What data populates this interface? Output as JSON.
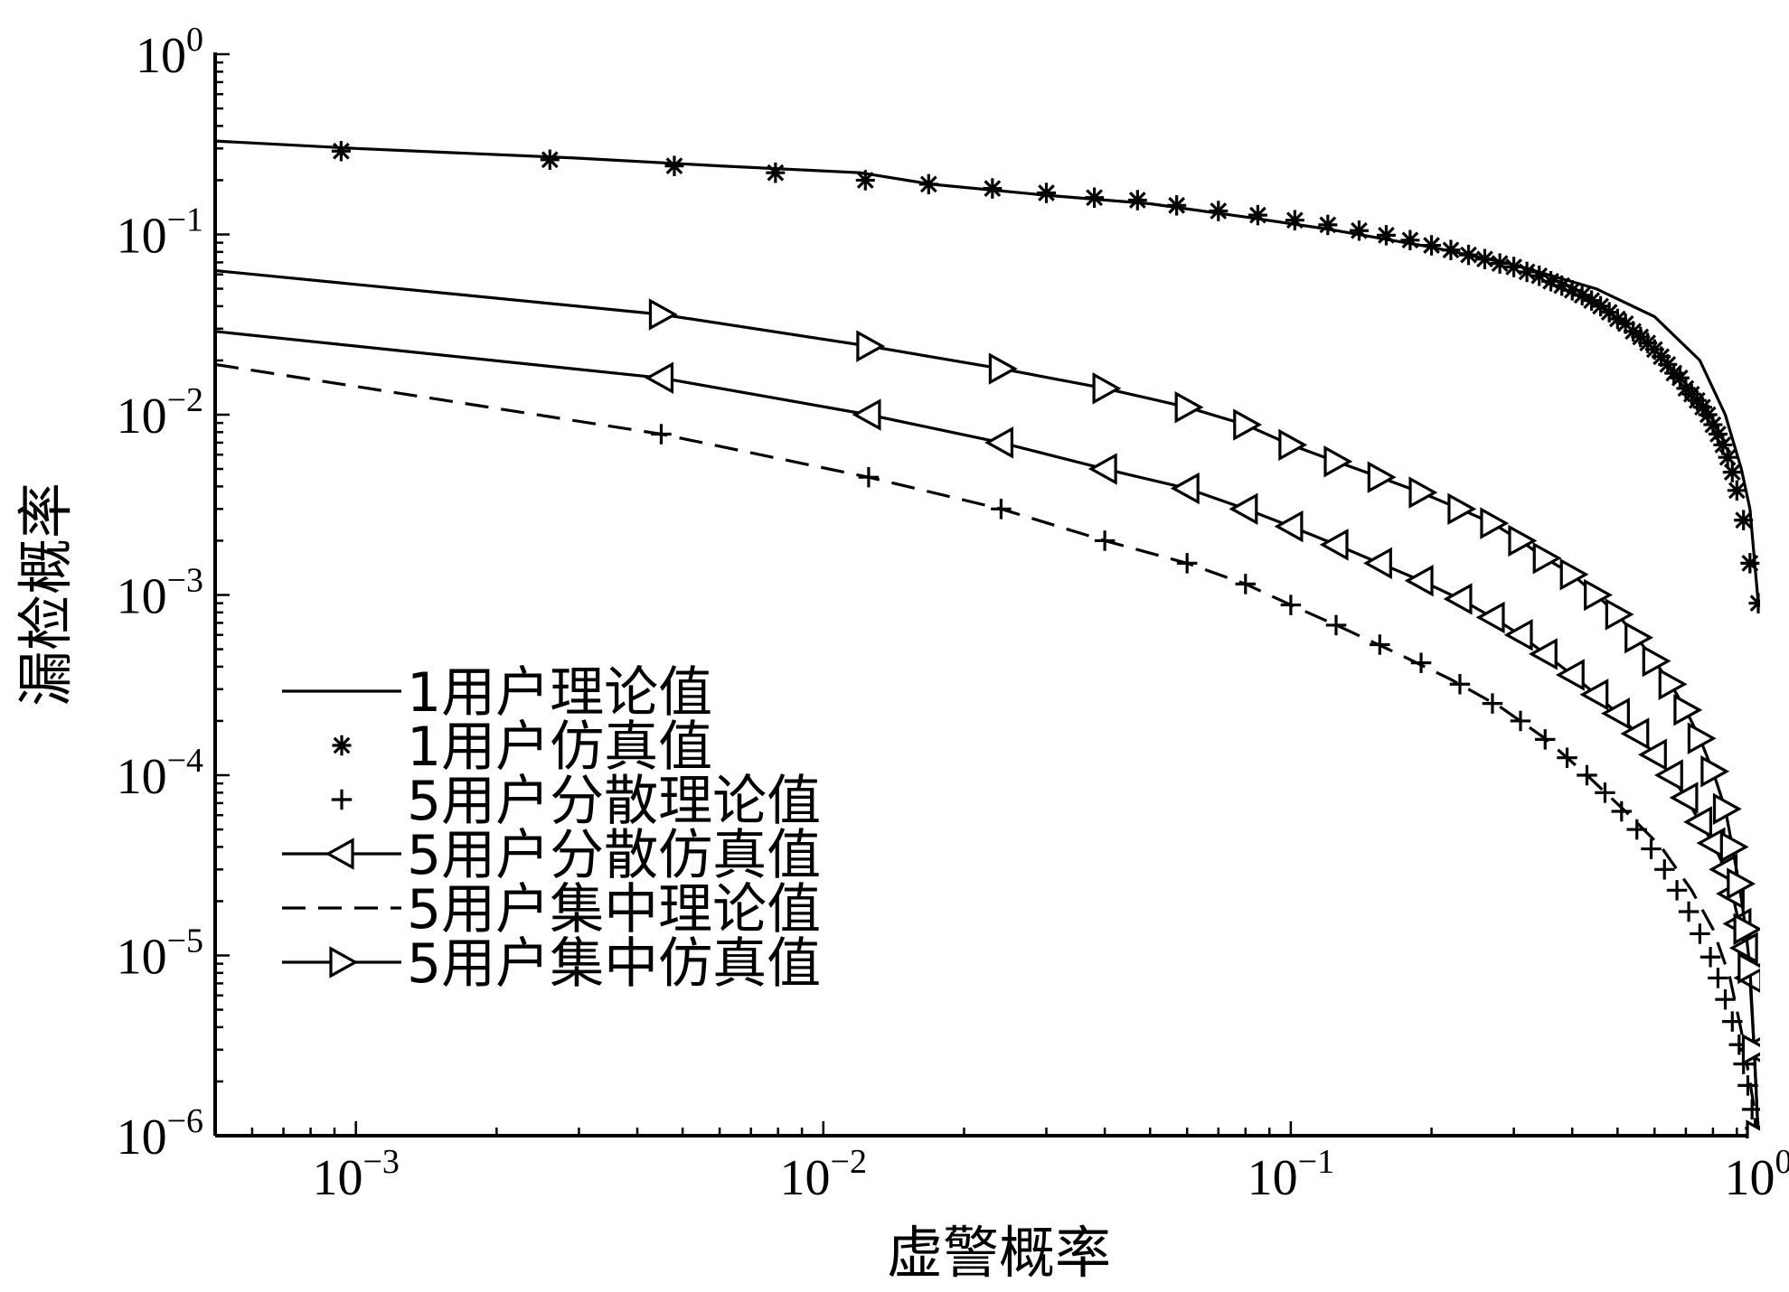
{
  "chart_data": {
    "type": "line",
    "xlabel": "虚警概率",
    "ylabel": "漏检概率",
    "xscale": "log",
    "yscale": "log",
    "xlim": [
      0.0005,
      1.0
    ],
    "ylim": [
      1e-06,
      1.0
    ],
    "grid": false,
    "legend_position": "bottom-left",
    "x_tick_labels": [
      {
        "value": 0.001,
        "base": "10",
        "exp": "−3"
      },
      {
        "value": 0.01,
        "base": "10",
        "exp": "−2"
      },
      {
        "value": 0.1,
        "base": "10",
        "exp": "−1"
      },
      {
        "value": 1,
        "base": "10",
        "exp": "0"
      }
    ],
    "y_tick_labels": [
      {
        "value": 1,
        "base": "10",
        "exp": "0"
      },
      {
        "value": 0.1,
        "base": "10",
        "exp": "−1"
      },
      {
        "value": 0.01,
        "base": "10",
        "exp": "−2"
      },
      {
        "value": 0.001,
        "base": "10",
        "exp": "−3"
      },
      {
        "value": 0.0001,
        "base": "10",
        "exp": "−4"
      },
      {
        "value": 1e-05,
        "base": "10",
        "exp": "−5"
      },
      {
        "value": 1e-06,
        "base": "10",
        "exp": "−6"
      }
    ],
    "series": [
      {
        "name": "1用户理论值",
        "line": "solid",
        "marker": "none",
        "x": [
          0.0005,
          0.001,
          0.003,
          0.006,
          0.012,
          0.017,
          0.03,
          0.05,
          0.08,
          0.12,
          0.2,
          0.3,
          0.45,
          0.6,
          0.75,
          0.85,
          0.92,
          0.96,
          1.0
        ],
        "y": [
          0.33,
          0.3,
          0.265,
          0.24,
          0.22,
          0.19,
          0.165,
          0.148,
          0.125,
          0.107,
          0.085,
          0.068,
          0.05,
          0.035,
          0.02,
          0.01,
          0.005,
          0.003,
          0.0009
        ]
      },
      {
        "name": "1用户仿真值",
        "line": "none",
        "marker": "asterisk",
        "x": [
          0.00093,
          0.0026,
          0.0048,
          0.0079,
          0.0123,
          0.0168,
          0.023,
          0.03,
          0.038,
          0.047,
          0.057,
          0.07,
          0.085,
          0.102,
          0.12,
          0.14,
          0.16,
          0.18,
          0.2,
          0.22,
          0.24,
          0.26,
          0.28,
          0.3,
          0.32,
          0.34,
          0.36,
          0.38,
          0.4,
          0.42,
          0.44,
          0.46,
          0.48,
          0.5,
          0.52,
          0.54,
          0.56,
          0.58,
          0.6,
          0.62,
          0.64,
          0.66,
          0.68,
          0.7,
          0.72,
          0.74,
          0.76,
          0.78,
          0.8,
          0.82,
          0.84,
          0.86,
          0.88,
          0.9,
          0.93,
          0.96,
          1.0
        ],
        "y": [
          0.29,
          0.26,
          0.24,
          0.22,
          0.2,
          0.19,
          0.18,
          0.17,
          0.16,
          0.155,
          0.145,
          0.135,
          0.128,
          0.12,
          0.113,
          0.105,
          0.099,
          0.093,
          0.087,
          0.082,
          0.077,
          0.073,
          0.069,
          0.066,
          0.062,
          0.059,
          0.055,
          0.052,
          0.049,
          0.046,
          0.043,
          0.04,
          0.037,
          0.034,
          0.032,
          0.029,
          0.027,
          0.025,
          0.023,
          0.021,
          0.019,
          0.017,
          0.016,
          0.014,
          0.013,
          0.012,
          0.011,
          0.01,
          0.0088,
          0.0078,
          0.0068,
          0.0058,
          0.0048,
          0.0038,
          0.0026,
          0.0015,
          0.0009
        ]
      },
      {
        "name": "5用户分散理论值",
        "line": "none",
        "marker": "plus",
        "x": [
          0.0045,
          0.0125,
          0.024,
          0.04,
          0.06,
          0.08,
          0.1,
          0.125,
          0.155,
          0.19,
          0.23,
          0.27,
          0.31,
          0.35,
          0.39,
          0.43,
          0.47,
          0.51,
          0.55,
          0.59,
          0.63,
          0.67,
          0.71,
          0.75,
          0.79,
          0.82,
          0.85,
          0.88,
          0.91,
          0.93,
          0.95,
          0.97,
          0.985,
          1.0
        ],
        "y": [
          0.0078,
          0.0045,
          0.003,
          0.002,
          0.0015,
          0.00115,
          0.00088,
          0.00068,
          0.00053,
          0.00042,
          0.00032,
          0.00025,
          0.0002,
          0.000158,
          0.000125,
          0.0001,
          8e-05,
          6.3e-05,
          5e-05,
          3.9e-05,
          3e-05,
          2.3e-05,
          1.75e-05,
          1.32e-05,
          9.8e-06,
          7.5e-06,
          5.7e-06,
          4.3e-06,
          3.2e-06,
          2.5e-06,
          1.9e-06,
          1.4e-06,
          1.1e-06,
          1e-06
        ]
      },
      {
        "name": "5用户分散仿真值",
        "line": "solid",
        "marker": "triangle-left",
        "x": [
          0.0005,
          0.0045,
          0.0125,
          0.024,
          0.04,
          0.06,
          0.08,
          0.1,
          0.125,
          0.155,
          0.19,
          0.23,
          0.27,
          0.31,
          0.35,
          0.4,
          0.45,
          0.5,
          0.55,
          0.6,
          0.65,
          0.7,
          0.75,
          0.8,
          0.85,
          0.88,
          0.91,
          0.94,
          0.96,
          0.98,
          1.0
        ],
        "y": [
          0.029,
          0.016,
          0.01,
          0.007,
          0.005,
          0.0039,
          0.003,
          0.0024,
          0.0019,
          0.0015,
          0.0012,
          0.00095,
          0.00075,
          0.0006,
          0.00047,
          0.00036,
          0.00028,
          0.00022,
          0.00017,
          0.00013,
          0.0001,
          7.5e-05,
          5.5e-05,
          4.2e-05,
          3e-05,
          2.2e-05,
          1.5e-05,
          1.1e-05,
          7.5e-06,
          3e-06,
          1e-06
        ]
      },
      {
        "name": "5用户集中理论值",
        "line": "dashed",
        "marker": "none",
        "x": [
          0.0005,
          0.0045,
          0.0125,
          0.024,
          0.04,
          0.06,
          0.08,
          0.1,
          0.13,
          0.17,
          0.22,
          0.28,
          0.35,
          0.43,
          0.52,
          0.62,
          0.72,
          0.8,
          0.87,
          0.92,
          0.96,
          0.985,
          1.0
        ],
        "y": [
          0.019,
          0.0078,
          0.0045,
          0.003,
          0.002,
          0.0015,
          0.00115,
          0.00088,
          0.00065,
          0.00047,
          0.00034,
          0.00024,
          0.00016,
          0.0001,
          6.3e-05,
          4e-05,
          2.3e-05,
          1.4e-05,
          7.5e-06,
          3.8e-06,
          2e-06,
          1.3e-06,
          1e-06
        ]
      },
      {
        "name": "5用户集中仿真值",
        "line": "solid",
        "marker": "triangle-right",
        "x": [
          0.0005,
          0.0045,
          0.0125,
          0.024,
          0.04,
          0.06,
          0.08,
          0.1,
          0.125,
          0.155,
          0.19,
          0.23,
          0.27,
          0.31,
          0.35,
          0.4,
          0.45,
          0.5,
          0.55,
          0.6,
          0.65,
          0.7,
          0.75,
          0.8,
          0.85,
          0.88,
          0.91,
          0.94,
          0.96,
          0.98,
          1.0
        ],
        "y": [
          0.063,
          0.036,
          0.024,
          0.018,
          0.014,
          0.011,
          0.0088,
          0.0068,
          0.0055,
          0.0045,
          0.0037,
          0.003,
          0.0025,
          0.002,
          0.0016,
          0.0013,
          0.001,
          0.00078,
          0.00058,
          0.00043,
          0.00032,
          0.00023,
          0.00016,
          0.000105,
          6.5e-05,
          4e-05,
          2.5e-05,
          1.4e-05,
          8.5e-06,
          3e-06,
          1e-06
        ]
      }
    ]
  }
}
